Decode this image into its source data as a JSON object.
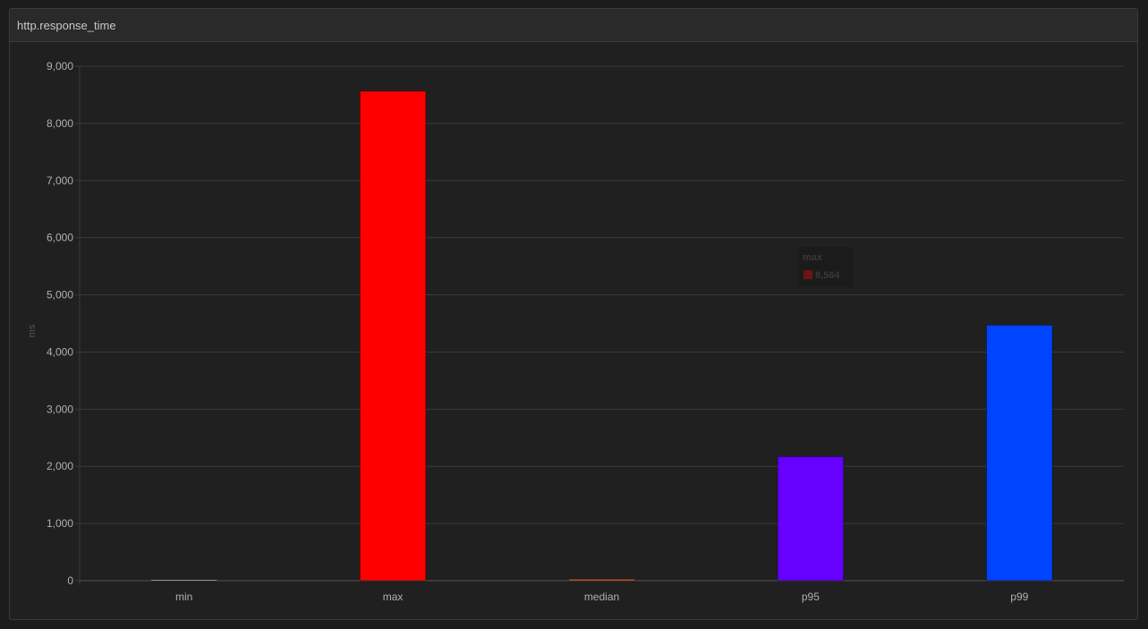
{
  "panel": {
    "title": "http.response_time"
  },
  "chart_data": {
    "type": "bar",
    "categories": [
      "min",
      "max",
      "median",
      "p95",
      "p99"
    ],
    "values": [
      2,
      8564,
      25,
      2170,
      4470
    ],
    "colors": [
      "#e5e5e5",
      "#ff0000",
      "#e8682a",
      "#6600ff",
      "#0044ff"
    ],
    "title": "http.response_time",
    "xlabel": "",
    "ylabel": "ms",
    "ylim": [
      0,
      9000
    ],
    "yticks": [
      0,
      1000,
      2000,
      3000,
      4000,
      5000,
      6000,
      7000,
      8000,
      9000
    ],
    "ytick_labels": [
      "0",
      "1,000",
      "2,000",
      "3,000",
      "4,000",
      "5,000",
      "6,000",
      "7,000",
      "8,000",
      "9,000"
    ],
    "grid": true,
    "legend": "none",
    "tooltip": {
      "series": "max",
      "value_label": "8,564",
      "swatch_color": "#ff0000"
    }
  }
}
